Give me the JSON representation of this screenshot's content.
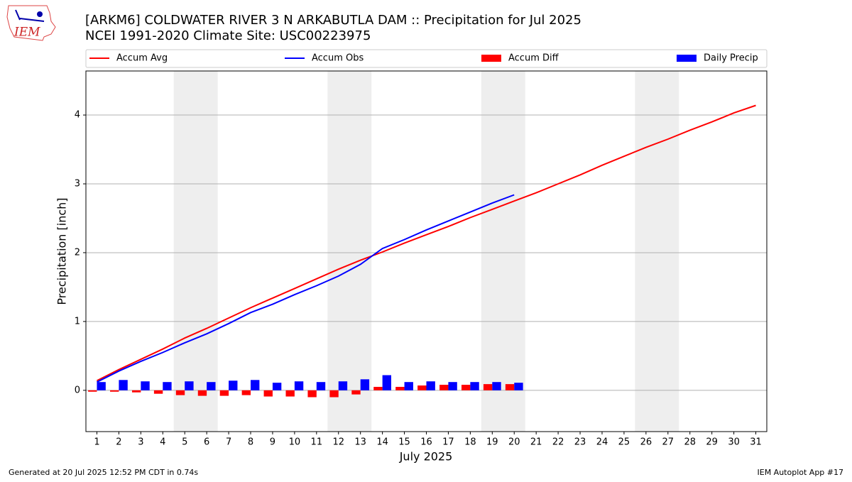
{
  "chart_data": {
    "type": "bar_line",
    "title": "[ARKM6] COLDWATER RIVER 3 N ARKABUTLA DAM :: Precipitation for Jul 2025",
    "subtitle": "NCEI 1991-2020 Climate Site: USC00223975",
    "logo_text": "IEM",
    "xlabel": "July 2025",
    "ylabel": "Precipitation [inch]",
    "footer_left": "Generated at 20 Jul 2025 12:52 PM CDT in 0.74s",
    "footer_right": "IEM Autoplot App #17",
    "x": [
      1,
      2,
      3,
      4,
      5,
      6,
      7,
      8,
      9,
      10,
      11,
      12,
      13,
      14,
      15,
      16,
      17,
      18,
      19,
      20,
      21,
      22,
      23,
      24,
      25,
      26,
      27,
      28,
      29,
      30,
      31
    ],
    "xlim": [
      0.5,
      31.5
    ],
    "xticks": [
      1,
      2,
      3,
      4,
      5,
      6,
      7,
      8,
      9,
      10,
      11,
      12,
      13,
      14,
      15,
      16,
      17,
      18,
      19,
      20,
      21,
      22,
      23,
      24,
      25,
      26,
      27,
      28,
      29,
      30,
      31
    ],
    "ylim": [
      -0.6,
      4.64
    ],
    "yticks": [
      0,
      1,
      2,
      3,
      4
    ],
    "grid": true,
    "shaded_spans": [
      [
        4.5,
        6.5
      ],
      [
        11.5,
        13.5
      ],
      [
        18.5,
        20.5
      ],
      [
        25.5,
        27.5
      ]
    ],
    "shade_color": "#eeeeee",
    "series": [
      {
        "name": "Accum Avg",
        "color": "#ff0000",
        "mark": "line",
        "values": [
          0.14,
          0.3,
          0.45,
          0.6,
          0.76,
          0.9,
          1.05,
          1.2,
          1.34,
          1.48,
          1.62,
          1.76,
          1.89,
          2.01,
          2.14,
          2.26,
          2.38,
          2.51,
          2.63,
          2.75,
          2.87,
          3.0,
          3.13,
          3.27,
          3.4,
          3.53,
          3.65,
          3.78,
          3.9,
          4.03,
          4.14
        ]
      },
      {
        "name": "Accum Obs",
        "color": "#0000ff",
        "mark": "line",
        "values": [
          0.12,
          0.28,
          0.42,
          0.55,
          0.69,
          0.82,
          0.97,
          1.13,
          1.25,
          1.39,
          1.52,
          1.66,
          1.83,
          2.06,
          2.19,
          2.33,
          2.46,
          2.59,
          2.72,
          2.84,
          null,
          null,
          null,
          null,
          null,
          null,
          null,
          null,
          null,
          null,
          null
        ]
      },
      {
        "name": "Accum Diff",
        "color": "#ff0000",
        "mark": "bar",
        "offset": -1,
        "values": [
          -0.02,
          -0.02,
          -0.03,
          -0.05,
          -0.07,
          -0.08,
          -0.08,
          -0.07,
          -0.09,
          -0.09,
          -0.1,
          -0.1,
          -0.06,
          0.05,
          0.05,
          0.07,
          0.08,
          0.08,
          0.09,
          0.09,
          null,
          null,
          null,
          null,
          null,
          null,
          null,
          null,
          null,
          null,
          null
        ]
      },
      {
        "name": "Daily Precip",
        "color": "#0000ff",
        "mark": "bar",
        "offset": 0,
        "values": [
          0.12,
          0.15,
          0.13,
          0.12,
          0.13,
          0.12,
          0.14,
          0.15,
          0.11,
          0.13,
          0.12,
          0.13,
          0.16,
          0.22,
          0.12,
          0.13,
          0.12,
          0.12,
          0.12,
          0.11,
          null,
          null,
          null,
          null,
          null,
          null,
          null,
          null,
          null,
          null,
          null
        ]
      }
    ]
  }
}
